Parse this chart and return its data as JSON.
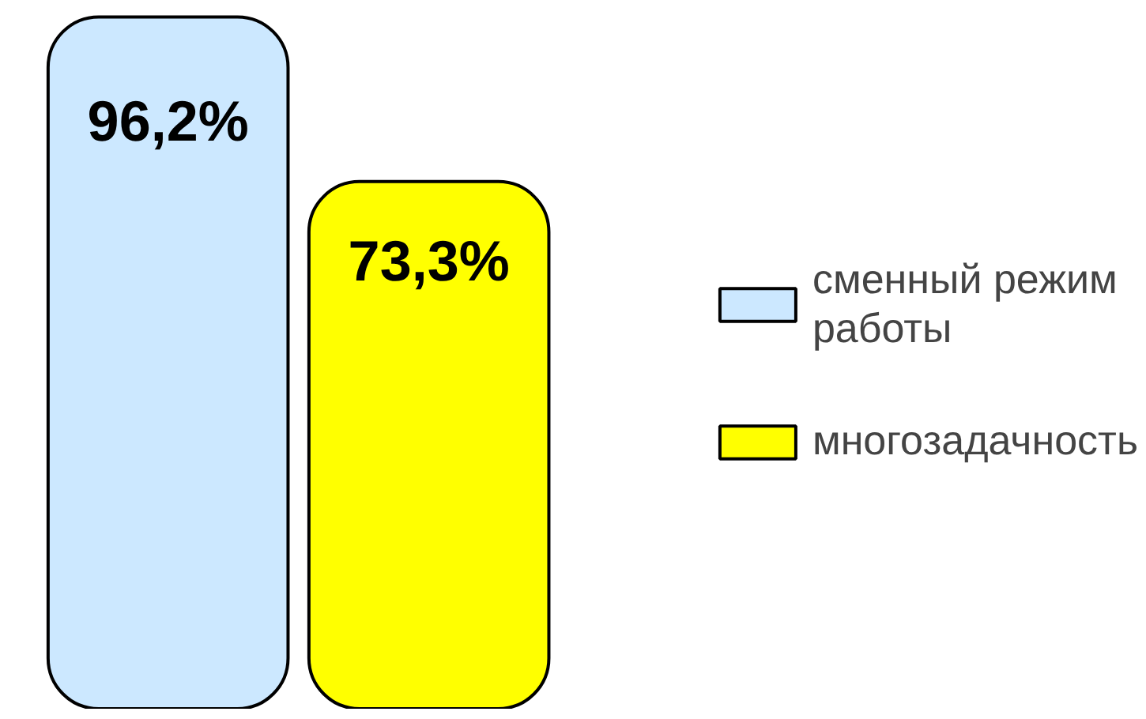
{
  "chart_data": {
    "type": "bar",
    "categories": [
      null
    ],
    "legend": "right",
    "series": [
      {
        "name": "сменный режим работы",
        "color": "#cce8ff",
        "values": [
          96.2
        ],
        "value_labels": [
          "96,2%"
        ]
      },
      {
        "name": "многозадачность",
        "color": "#ffff00",
        "values": [
          73.3
        ],
        "value_labels": [
          "73,3%"
        ]
      }
    ]
  }
}
